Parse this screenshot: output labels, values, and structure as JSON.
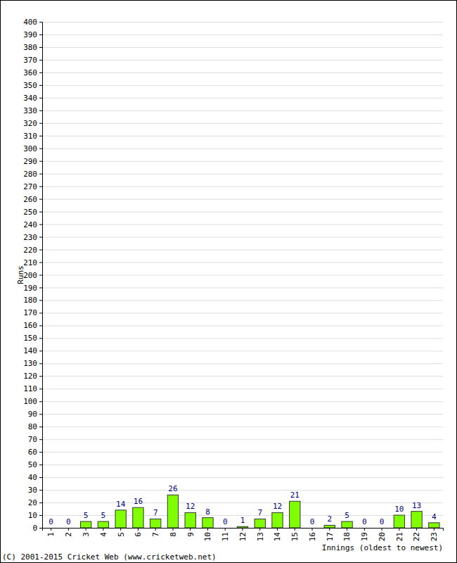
{
  "chart_data": {
    "type": "bar",
    "x_label": "Innings (oldest to newest)",
    "y_label": "Runs",
    "annotations": [
      "(C) 2001-2015 Cricket Web (www.cricketweb.net)"
    ],
    "categories": [
      "1",
      "2",
      "3",
      "4",
      "5",
      "6",
      "7",
      "8",
      "9",
      "10",
      "11",
      "12",
      "13",
      "14",
      "15",
      "16",
      "17",
      "18",
      "19",
      "20",
      "21",
      "22",
      "23"
    ],
    "values": [
      0,
      0,
      5,
      5,
      14,
      16,
      7,
      26,
      12,
      8,
      0,
      1,
      7,
      12,
      21,
      0,
      2,
      5,
      0,
      0,
      10,
      13,
      4
    ],
    "color": "#80ff00",
    "ylim": [
      0,
      400
    ],
    "yticks": [
      0,
      10,
      20,
      30,
      40,
      50,
      60,
      70,
      80,
      90,
      100,
      110,
      120,
      130,
      140,
      150,
      160,
      170,
      180,
      190,
      200,
      210,
      220,
      230,
      240,
      250,
      260,
      270,
      280,
      290,
      300,
      310,
      320,
      330,
      340,
      350,
      360,
      370,
      380,
      390,
      400
    ],
    "grid": true,
    "data_labels": true
  }
}
